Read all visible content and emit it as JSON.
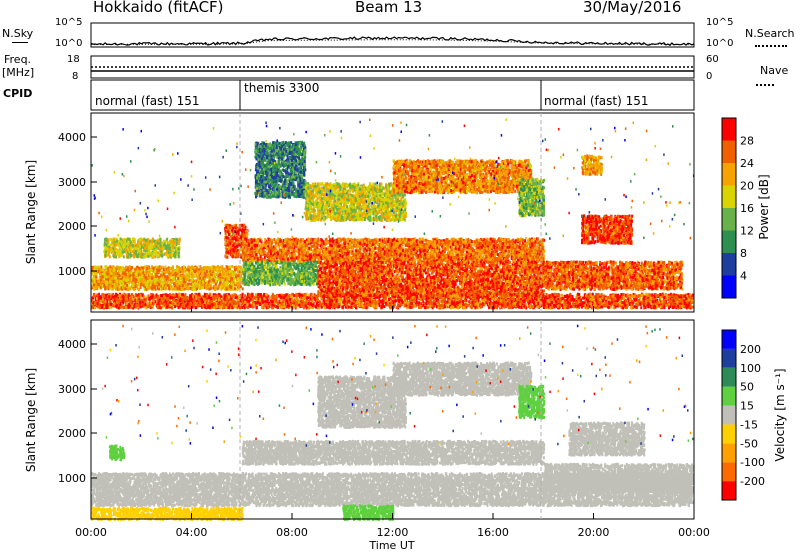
{
  "header": {
    "station": "Hokkaido (fitACF)",
    "beam": "Beam 13",
    "date": "30/May/2016"
  },
  "noise_panel": {
    "left_label": "N.Sky",
    "right_label": "N.Search",
    "left_ticks": [
      "10^5",
      "10^0"
    ],
    "right_ticks": [
      "10^5",
      "10^0"
    ]
  },
  "freq_panel": {
    "left_label_line1": "Freq.",
    "left_label_line2": "[MHz]",
    "right_label": "Nave",
    "left_ticks": [
      "18",
      "8"
    ],
    "right_ticks": [
      "60",
      "0"
    ]
  },
  "cpid_panel": {
    "label": "CPID",
    "segments": [
      "normal (fast) 151",
      "themis 3300",
      "normal (fast) 151"
    ]
  },
  "x_axis": {
    "label": "Time UT",
    "ticks": [
      "00:00",
      "04:00",
      "08:00",
      "12:00",
      "16:00",
      "20:00",
      "00:00"
    ]
  },
  "power_panel": {
    "ylabel": "Slant Range [km]",
    "yticks": [
      "4000",
      "3000",
      "2000",
      "1000"
    ],
    "colorbar_label": "Power [dB]",
    "colorbar_ticks": [
      "28",
      "24",
      "20",
      "16",
      "12",
      "8",
      "4"
    ]
  },
  "velocity_panel": {
    "ylabel": "Slant Range [km]",
    "yticks": [
      "4000",
      "3000",
      "2000",
      "1000"
    ],
    "colorbar_label": "Velocity [m s⁻¹]",
    "colorbar_ticks": [
      "200",
      "100",
      "50",
      "15",
      "-15",
      "-50",
      "-100",
      "-200"
    ]
  },
  "chart_data": [
    {
      "type": "line",
      "title": "N.Sky / N.Search noise",
      "x_range_hours": [
        0,
        24
      ],
      "series": [
        {
          "name": "N.Sky",
          "x": [
            0,
            2,
            4,
            6,
            7,
            8,
            10,
            12,
            14,
            16,
            18,
            20,
            22,
            24
          ],
          "y_log10": [
            0.4,
            0.5,
            0.5,
            0.6,
            1.5,
            1.6,
            1.7,
            1.8,
            1.7,
            1.4,
            0.8,
            0.6,
            0.5,
            0.4
          ]
        }
      ],
      "ylim": [
        "10^0",
        "10^5"
      ]
    },
    {
      "type": "line",
      "title": "Freq. / Nave",
      "series": [
        {
          "name": "Freq.",
          "x": [
            0,
            24
          ],
          "y": [
            10.5,
            10.5
          ]
        },
        {
          "name": "Nave",
          "x": [
            0,
            24
          ],
          "y": [
            20,
            20
          ]
        }
      ]
    },
    {
      "type": "heatmap",
      "title": "Power [dB]",
      "x_range_hours": [
        0,
        24
      ],
      "ylim": [
        180,
        4500
      ],
      "value_range": [
        0,
        30
      ],
      "blobs": [
        {
          "t0": 0.0,
          "t1": 24.0,
          "r0": 300,
          "r1": 600,
          "v": 27
        },
        {
          "t0": 0.0,
          "t1": 6.0,
          "r0": 700,
          "r1": 1200,
          "v": 22
        },
        {
          "t0": 0.5,
          "t1": 3.5,
          "r0": 1400,
          "r1": 1800,
          "v": 18
        },
        {
          "t0": 5.3,
          "t1": 6.2,
          "r0": 1400,
          "r1": 2100,
          "v": 27
        },
        {
          "t0": 6.0,
          "t1": 18.0,
          "r0": 1300,
          "r1": 1800,
          "v": 25
        },
        {
          "t0": 6.0,
          "t1": 9.0,
          "r0": 800,
          "r1": 1300,
          "v": 13
        },
        {
          "t0": 9.0,
          "t1": 18.0,
          "r0": 550,
          "r1": 1300,
          "v": 27
        },
        {
          "t0": 6.5,
          "t1": 8.5,
          "r0": 2700,
          "r1": 3900,
          "v": 9
        },
        {
          "t0": 8.5,
          "t1": 12.5,
          "r0": 2200,
          "r1": 3000,
          "v": 18
        },
        {
          "t0": 12.0,
          "t1": 17.5,
          "r0": 2800,
          "r1": 3500,
          "v": 24
        },
        {
          "t0": 17.0,
          "t1": 18.0,
          "r0": 2300,
          "r1": 3100,
          "v": 14
        },
        {
          "t0": 18.0,
          "t1": 23.5,
          "r0": 700,
          "r1": 1300,
          "v": 26
        },
        {
          "t0": 19.5,
          "t1": 21.5,
          "r0": 1700,
          "r1": 2300,
          "v": 28
        },
        {
          "t0": 19.5,
          "t1": 20.3,
          "r0": 3200,
          "r1": 3600,
          "v": 22
        }
      ]
    },
    {
      "type": "heatmap",
      "title": "Velocity [m s⁻¹]",
      "x_range_hours": [
        0,
        24
      ],
      "ylim": [
        180,
        4500
      ],
      "value_range": [
        -250,
        250
      ],
      "blobs": [
        {
          "t0": 0.0,
          "t1": 24.0,
          "r0": 500,
          "r1": 1200,
          "v": 0
        },
        {
          "t0": 0.0,
          "t1": 6.0,
          "r0": 200,
          "r1": 450,
          "v": -40
        },
        {
          "t0": 0.7,
          "t1": 1.3,
          "r0": 1500,
          "r1": 1800,
          "v": 40
        },
        {
          "t0": 6.0,
          "t1": 18.0,
          "r0": 1400,
          "r1": 1900,
          "v": 0
        },
        {
          "t0": 9.0,
          "t1": 12.5,
          "r0": 2200,
          "r1": 3300,
          "v": 5
        },
        {
          "t0": 12.0,
          "t1": 17.5,
          "r0": 2900,
          "r1": 3600,
          "v": 0
        },
        {
          "t0": 10.0,
          "t1": 12.0,
          "r0": 200,
          "r1": 500,
          "v": 40
        },
        {
          "t0": 17.0,
          "t1": 18.0,
          "r0": 2400,
          "r1": 3100,
          "v": 40
        },
        {
          "t0": 18.0,
          "t1": 24.0,
          "r0": 800,
          "r1": 1400,
          "v": 0
        },
        {
          "t0": 19.0,
          "t1": 22.0,
          "r0": 1600,
          "r1": 2300,
          "v": 0
        }
      ]
    }
  ],
  "colors": {
    "noise_line": "#000000",
    "dashed_separator": "#b0b0b0"
  }
}
